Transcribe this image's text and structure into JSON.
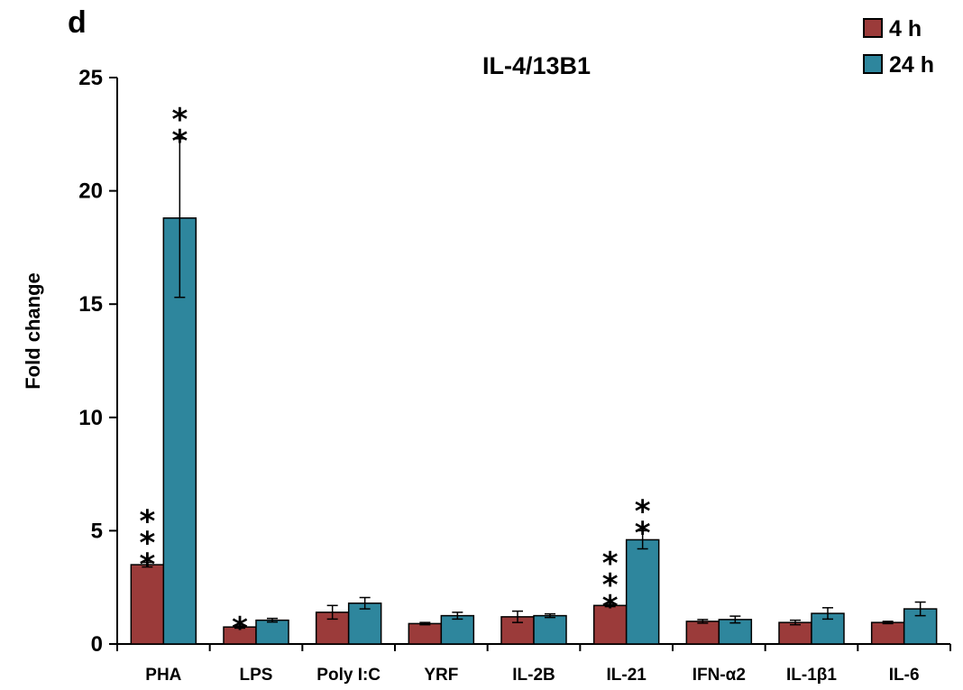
{
  "panel_letter": "d",
  "chart_data": {
    "type": "bar",
    "title": "IL-4/13B1",
    "xlabel": "",
    "ylabel": "Fold change",
    "ylim": [
      0,
      25
    ],
    "yticks": [
      0,
      5,
      10,
      15,
      20,
      25
    ],
    "categories": [
      "PHA",
      "LPS",
      "Poly I:C",
      "YRF",
      "IL-2B",
      "IL-21",
      "IFN-α2",
      "IL-1β1",
      "IL-6"
    ],
    "series": [
      {
        "name": "4 h",
        "color": "#9b3b3a",
        "values": [
          3.5,
          0.75,
          1.4,
          0.9,
          1.2,
          1.7,
          1.0,
          0.95,
          0.95
        ],
        "errors": [
          0.1,
          0.05,
          0.3,
          0.05,
          0.25,
          0.05,
          0.08,
          0.1,
          0.05
        ],
        "significance": [
          "***",
          "*",
          "",
          "",
          "",
          "***",
          "",
          "",
          ""
        ]
      },
      {
        "name": "24 h",
        "color": "#2e869d",
        "values": [
          18.8,
          1.05,
          1.8,
          1.25,
          1.25,
          4.6,
          1.08,
          1.35,
          1.55
        ],
        "errors": [
          3.5,
          0.08,
          0.25,
          0.15,
          0.08,
          0.4,
          0.15,
          0.25,
          0.3
        ],
        "significance": [
          "**",
          "",
          "",
          "",
          "",
          "**",
          "",
          "",
          ""
        ]
      }
    ],
    "legend_position": "top-right",
    "grid": false
  }
}
